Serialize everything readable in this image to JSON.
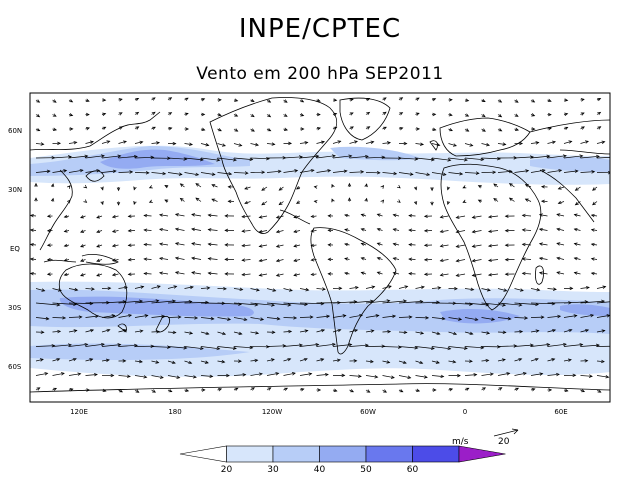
{
  "title": "INPE/CPTEC",
  "subtitle": "Vento em 200 hPa SEP2011",
  "lat_labels": [
    "60N",
    "30N",
    "EQ",
    "30S",
    "60S"
  ],
  "lon_labels": [
    "120E",
    "180",
    "120W",
    "60W",
    "0",
    "60E"
  ],
  "scale_unit": "m/s",
  "scale_value": "20",
  "colorbar": {
    "levels": [
      "20",
      "30",
      "40",
      "50",
      "60"
    ],
    "colors": [
      "#ffffff",
      "#d7e6fb",
      "#b7cdf7",
      "#94abf2",
      "#6978ee",
      "#4c4ce8",
      "#9b1ec8"
    ]
  },
  "colors": {
    "frame": "#000000",
    "land_outline": "#000000"
  }
}
